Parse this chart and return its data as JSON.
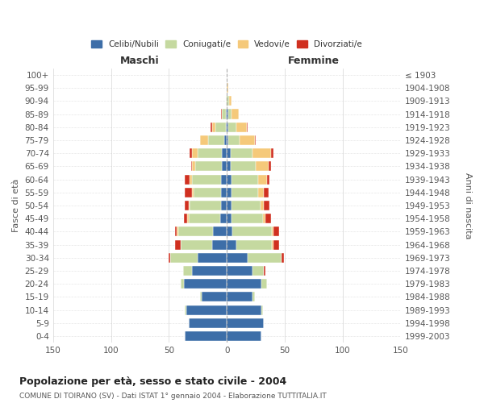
{
  "age_groups": [
    "0-4",
    "5-9",
    "10-14",
    "15-19",
    "20-24",
    "25-29",
    "30-34",
    "35-39",
    "40-44",
    "45-49",
    "50-54",
    "55-59",
    "60-64",
    "65-69",
    "70-74",
    "75-79",
    "80-84",
    "85-89",
    "90-94",
    "95-99",
    "100+"
  ],
  "birth_years": [
    "1999-2003",
    "1994-1998",
    "1989-1993",
    "1984-1988",
    "1979-1983",
    "1974-1978",
    "1969-1973",
    "1964-1968",
    "1959-1963",
    "1954-1958",
    "1949-1953",
    "1944-1948",
    "1939-1943",
    "1934-1938",
    "1929-1933",
    "1924-1928",
    "1919-1923",
    "1914-1918",
    "1909-1913",
    "1904-1908",
    "≤ 1903"
  ],
  "males": {
    "celibi": [
      36,
      33,
      35,
      22,
      37,
      30,
      25,
      13,
      12,
      6,
      5,
      5,
      5,
      4,
      4,
      2,
      1,
      1,
      0,
      0,
      0
    ],
    "coniugati": [
      0,
      0,
      1,
      1,
      3,
      8,
      24,
      27,
      30,
      27,
      27,
      24,
      25,
      23,
      21,
      14,
      9,
      3,
      1,
      0,
      0
    ],
    "vedovi": [
      0,
      0,
      0,
      0,
      0,
      0,
      0,
      0,
      1,
      1,
      1,
      1,
      2,
      3,
      5,
      7,
      3,
      0,
      0,
      0,
      0
    ],
    "divorziati": [
      0,
      0,
      0,
      0,
      0,
      0,
      1,
      5,
      2,
      3,
      3,
      6,
      4,
      1,
      2,
      0,
      1,
      1,
      0,
      0,
      0
    ]
  },
  "females": {
    "nubili": [
      30,
      32,
      30,
      22,
      30,
      22,
      18,
      8,
      5,
      4,
      4,
      4,
      4,
      3,
      3,
      1,
      1,
      1,
      0,
      0,
      0
    ],
    "coniugate": [
      0,
      0,
      1,
      2,
      5,
      10,
      29,
      31,
      34,
      27,
      25,
      23,
      23,
      22,
      19,
      10,
      7,
      3,
      2,
      0,
      0
    ],
    "vedove": [
      0,
      0,
      0,
      0,
      0,
      0,
      0,
      1,
      1,
      2,
      3,
      5,
      8,
      11,
      16,
      13,
      9,
      6,
      2,
      1,
      0
    ],
    "divorziate": [
      0,
      0,
      0,
      0,
      0,
      1,
      2,
      5,
      5,
      5,
      5,
      4,
      2,
      2,
      2,
      1,
      1,
      0,
      0,
      0,
      0
    ]
  },
  "colors": {
    "celibi": "#3d6ea8",
    "coniugati": "#c5d9a0",
    "vedovi": "#f5c97a",
    "divorziati": "#d03020"
  },
  "title": "Popolazione per età, sesso e stato civile - 2004",
  "subtitle": "COMUNE DI TOIRANO (SV) - Dati ISTAT 1° gennaio 2004 - Elaborazione TUTTITALIA.IT",
  "xlabel_left": "Maschi",
  "xlabel_right": "Femmine",
  "ylabel_left": "Fasce di età",
  "ylabel_right": "Anni di nascita",
  "xlim": 150,
  "legend_labels": [
    "Celibi/Nubili",
    "Coniugati/e",
    "Vedovi/e",
    "Divorziati/e"
  ],
  "background_color": "#ffffff",
  "grid_color": "#cccccc"
}
